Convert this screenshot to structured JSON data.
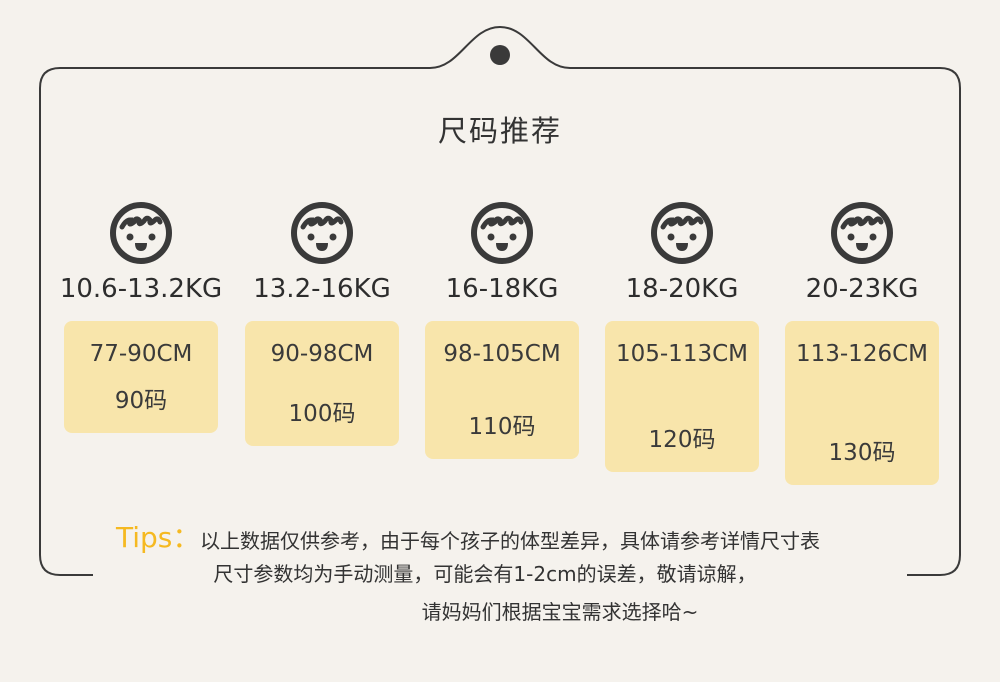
{
  "title": "尺码推荐",
  "colors": {
    "background": "#f5f2ed",
    "card": "#f8e5ab",
    "tips_label": "#f5b921",
    "line": "#3a3a3a"
  },
  "sizes": [
    {
      "weight": "10.6-13.2KG",
      "range": "77-90CM",
      "size": "90码",
      "icon": "baby-face-icon"
    },
    {
      "weight": "13.2-16KG",
      "range": "90-98CM",
      "size": "100码",
      "icon": "baby-face-icon"
    },
    {
      "weight": "16-18KG",
      "range": "98-105CM",
      "size": "110码",
      "icon": "baby-face-icon"
    },
    {
      "weight": "18-20KG",
      "range": "105-113CM",
      "size": "120码",
      "icon": "baby-face-icon"
    },
    {
      "weight": "20-23KG",
      "range": "113-126CM",
      "size": "130码",
      "icon": "baby-face-icon"
    }
  ],
  "tips": {
    "label": "Tips：",
    "line1": "以上数据仅供参考，由于每个孩子的体型差异，具体请参考详情尺寸表",
    "line2": "尺寸参数均为手动测量，可能会有1-2cm的误差，敬请谅解，",
    "line3": "请妈妈们根据宝宝需求选择哈~"
  }
}
